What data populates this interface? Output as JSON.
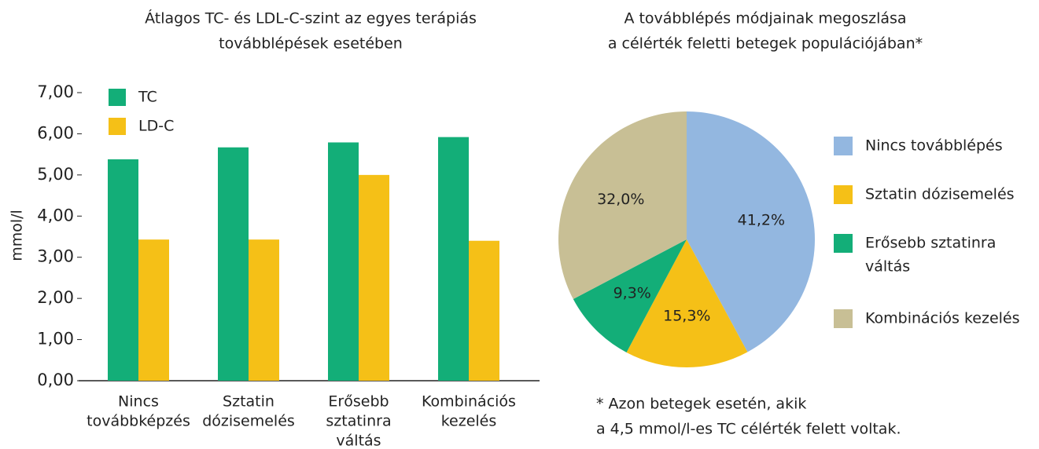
{
  "chart_data": [
    {
      "type": "bar",
      "title": [
        "Átlagos TC- és LDL-C-szint az egyes terápiás",
        "továbblépések esetében"
      ],
      "ylabel": "mmol/l",
      "categories": [
        [
          "Nincs",
          "továbbképzés"
        ],
        [
          "Sztatin",
          "dózisemelés"
        ],
        [
          "Erősebb",
          "sztatinra",
          "váltás"
        ],
        [
          "Kombinációs",
          "kezelés"
        ]
      ],
      "series": [
        {
          "name": "TC",
          "color": "#13ae78",
          "values": [
            5.38,
            5.67,
            5.79,
            5.92
          ]
        },
        {
          "name": "LD-C",
          "color": "#f5c017",
          "values": [
            3.43,
            3.43,
            5.0,
            3.4
          ]
        }
      ],
      "ylim": [
        0,
        7
      ],
      "yticks": [
        {
          "value": 0,
          "label": "0,00"
        },
        {
          "value": 1,
          "label": "1,00"
        },
        {
          "value": 2,
          "label": "2,00"
        },
        {
          "value": 3,
          "label": "3,00"
        },
        {
          "value": 4,
          "label": "4,00"
        },
        {
          "value": 5,
          "label": "5,00"
        },
        {
          "value": 6,
          "label": "6,00"
        },
        {
          "value": 7,
          "label": "7,00"
        }
      ],
      "legend": "upper left"
    },
    {
      "type": "pie",
      "title": [
        "A továbblépés módjainak megoszlása",
        "a célérték feletti betegek populációjában*"
      ],
      "categories": [
        [
          "Nincs továbblépés"
        ],
        [
          "Sztatin dózisemelés"
        ],
        [
          "Erősebb sztatinra",
          "váltás"
        ],
        [
          "Kombinációs kezelés"
        ]
      ],
      "values": [
        41.2,
        15.3,
        9.3,
        32.0
      ],
      "value_labels": [
        "41,2%",
        "15,3%",
        "9,3%",
        "32,0%"
      ],
      "colors": [
        "#93b7e0",
        "#f5c017",
        "#13ae78",
        "#c8bf95"
      ],
      "legend": "right",
      "note": [
        "* Azon betegek esetén, akik",
        "a 4,5 mmol/l-es TC célérték felett voltak."
      ]
    }
  ]
}
